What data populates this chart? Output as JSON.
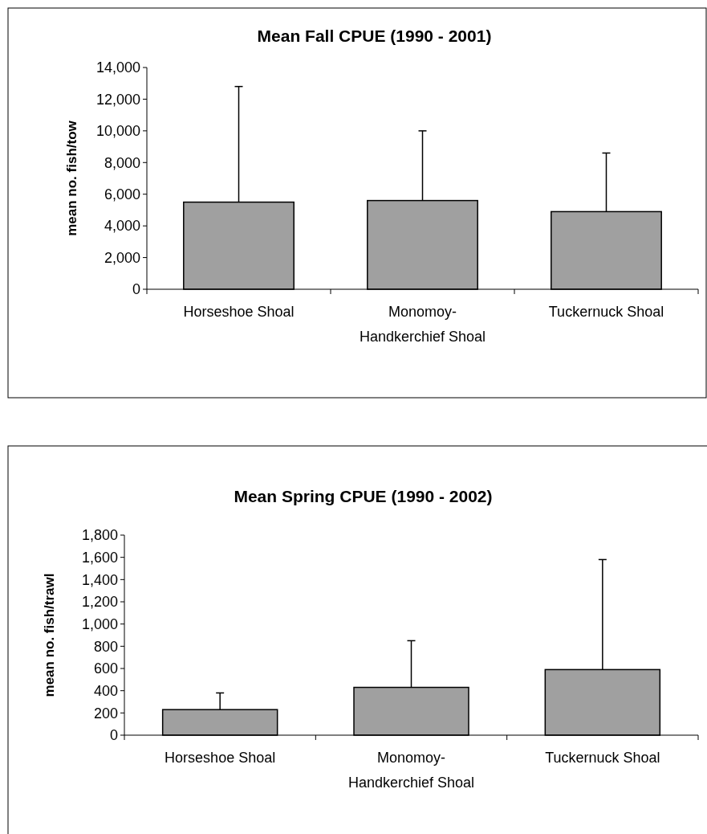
{
  "chart_data": [
    {
      "type": "bar",
      "title": "Mean Fall CPUE (1990 - 2001)",
      "ylabel": "mean no. fish/tow",
      "categories": [
        "Horseshoe Shoal",
        "Monomoy-Handkerchief Shoal",
        "Tuckernuck Shoal"
      ],
      "values": [
        5500,
        5600,
        4900
      ],
      "color": "#a0a0a0",
      "errors": [
        [
          5500,
          12800
        ],
        [
          5600,
          10000
        ],
        [
          4900,
          8600
        ]
      ],
      "ylim": [
        0,
        14000
      ],
      "yticks": [
        0,
        {
          "value": 2000,
          "label": "2,000"
        },
        {
          "value": 4000,
          "label": "4,000"
        },
        {
          "value": 6000,
          "label": "6,000"
        },
        {
          "value": 8000,
          "label": "8,000"
        },
        {
          "value": 10000,
          "label": "10,000"
        },
        {
          "value": 12000,
          "label": "12,000"
        },
        {
          "value": 14000,
          "label": "14,000"
        }
      ],
      "grid": false
    },
    {
      "type": "bar",
      "title": "Mean Spring CPUE (1990 - 2002)",
      "ylabel": "mean no. fish/trawl",
      "categories": [
        "Horseshoe Shoal",
        "Monomoy-Handkerchief Shoal",
        "Tuckernuck Shoal"
      ],
      "values": [
        230,
        430,
        590
      ],
      "color": "#a0a0a0",
      "errors": [
        [
          230,
          380
        ],
        [
          430,
          850
        ],
        [
          590,
          1580
        ]
      ],
      "ylim": [
        0,
        1800
      ],
      "yticks": [
        0,
        200,
        400,
        600,
        800,
        {
          "value": 1000,
          "label": "1,000"
        },
        {
          "value": 1200,
          "label": "1,200"
        },
        {
          "value": 1400,
          "label": "1,400"
        },
        {
          "value": 1600,
          "label": "1,600"
        },
        {
          "value": 1800,
          "label": "1,800"
        }
      ],
      "grid": false
    }
  ]
}
